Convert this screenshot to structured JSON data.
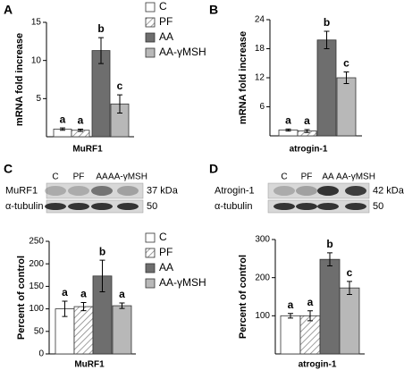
{
  "panel_labels": [
    "A",
    "B",
    "C",
    "D"
  ],
  "blots": [
    {
      "lanes": [
        "C",
        "PF",
        "AA",
        "AA-γMSH"
      ],
      "rows": [
        {
          "name": "MuRF1",
          "size": "37 kDa"
        },
        {
          "name": "α-tubulin",
          "size": "50"
        }
      ]
    },
    {
      "lanes": [
        "C",
        "PF",
        "AA",
        "AA-γMSH"
      ],
      "rows": [
        {
          "name": "Atrogin-1",
          "size": "42 kDa"
        },
        {
          "name": "α-tubulin",
          "size": "50"
        }
      ]
    }
  ],
  "chart_data": [
    {
      "type": "bar",
      "y_label": "mRNA fold increase",
      "categories": [
        "MuRF1"
      ],
      "ylim": [
        0,
        15
      ],
      "yticks": [
        5,
        10,
        15
      ],
      "legend": true,
      "series": [
        {
          "name": "C",
          "color": "#ffffff",
          "hatch": false,
          "values": [
            1.0
          ],
          "errors": [
            0.15
          ],
          "letters": [
            "a"
          ]
        },
        {
          "name": "PF",
          "color": "#ffffff",
          "hatch": true,
          "values": [
            0.85
          ],
          "errors": [
            0.15
          ],
          "letters": [
            "a"
          ]
        },
        {
          "name": "AA",
          "color": "#6e6e6e",
          "hatch": false,
          "values": [
            11.3
          ],
          "errors": [
            1.7
          ],
          "letters": [
            "b"
          ]
        },
        {
          "name": "AA-γMSH",
          "color": "#b8b8b8",
          "hatch": false,
          "values": [
            4.3
          ],
          "errors": [
            1.2
          ],
          "letters": [
            "c"
          ]
        }
      ]
    },
    {
      "type": "bar",
      "y_label": "mRNA fold increase",
      "categories": [
        "atrogin-1"
      ],
      "ylim": [
        0,
        24
      ],
      "yticks": [
        6,
        12,
        18,
        24
      ],
      "legend": false,
      "series": [
        {
          "name": "C",
          "color": "#ffffff",
          "hatch": false,
          "values": [
            1.2
          ],
          "errors": [
            0.2
          ],
          "letters": [
            "a"
          ]
        },
        {
          "name": "PF",
          "color": "#ffffff",
          "hatch": true,
          "values": [
            1.0
          ],
          "errors": [
            0.3
          ],
          "letters": [
            "a"
          ]
        },
        {
          "name": "AA",
          "color": "#6e6e6e",
          "hatch": false,
          "values": [
            19.8
          ],
          "errors": [
            1.8
          ],
          "letters": [
            "b"
          ]
        },
        {
          "name": "AA-γMSH",
          "color": "#b8b8b8",
          "hatch": false,
          "values": [
            12.0
          ],
          "errors": [
            1.2
          ],
          "letters": [
            "c"
          ]
        }
      ]
    },
    {
      "type": "bar",
      "y_label": "Percent of control",
      "categories": [
        "MuRF1"
      ],
      "ylim": [
        0,
        250
      ],
      "yticks": [
        0,
        50,
        100,
        150,
        200,
        250
      ],
      "legend": true,
      "series": [
        {
          "name": "C",
          "color": "#ffffff",
          "hatch": false,
          "values": [
            100
          ],
          "errors": [
            17
          ],
          "letters": [
            "a"
          ]
        },
        {
          "name": "PF",
          "color": "#ffffff",
          "hatch": true,
          "values": [
            105
          ],
          "errors": [
            9
          ],
          "letters": [
            "a"
          ]
        },
        {
          "name": "AA",
          "color": "#6e6e6e",
          "hatch": false,
          "values": [
            173
          ],
          "errors": [
            35
          ],
          "letters": [
            "b"
          ]
        },
        {
          "name": "AA-γMSH",
          "color": "#b8b8b8",
          "hatch": false,
          "values": [
            107
          ],
          "errors": [
            6
          ],
          "letters": [
            "a"
          ]
        }
      ]
    },
    {
      "type": "bar",
      "y_label": "Percent of control",
      "categories": [
        "atrogin-1"
      ],
      "ylim": [
        0,
        300
      ],
      "yticks": [
        100,
        200,
        300
      ],
      "legend": false,
      "series": [
        {
          "name": "C",
          "color": "#ffffff",
          "hatch": false,
          "values": [
            100
          ],
          "errors": [
            6
          ],
          "letters": [
            "a"
          ]
        },
        {
          "name": "PF",
          "color": "#ffffff",
          "hatch": true,
          "values": [
            100
          ],
          "errors": [
            13
          ],
          "letters": [
            "a"
          ]
        },
        {
          "name": "AA",
          "color": "#6e6e6e",
          "hatch": false,
          "values": [
            248
          ],
          "errors": [
            17
          ],
          "letters": [
            "b"
          ]
        },
        {
          "name": "AA-γMSH",
          "color": "#b8b8b8",
          "hatch": false,
          "values": [
            173
          ],
          "errors": [
            17
          ],
          "letters": [
            "c"
          ]
        }
      ]
    }
  ]
}
